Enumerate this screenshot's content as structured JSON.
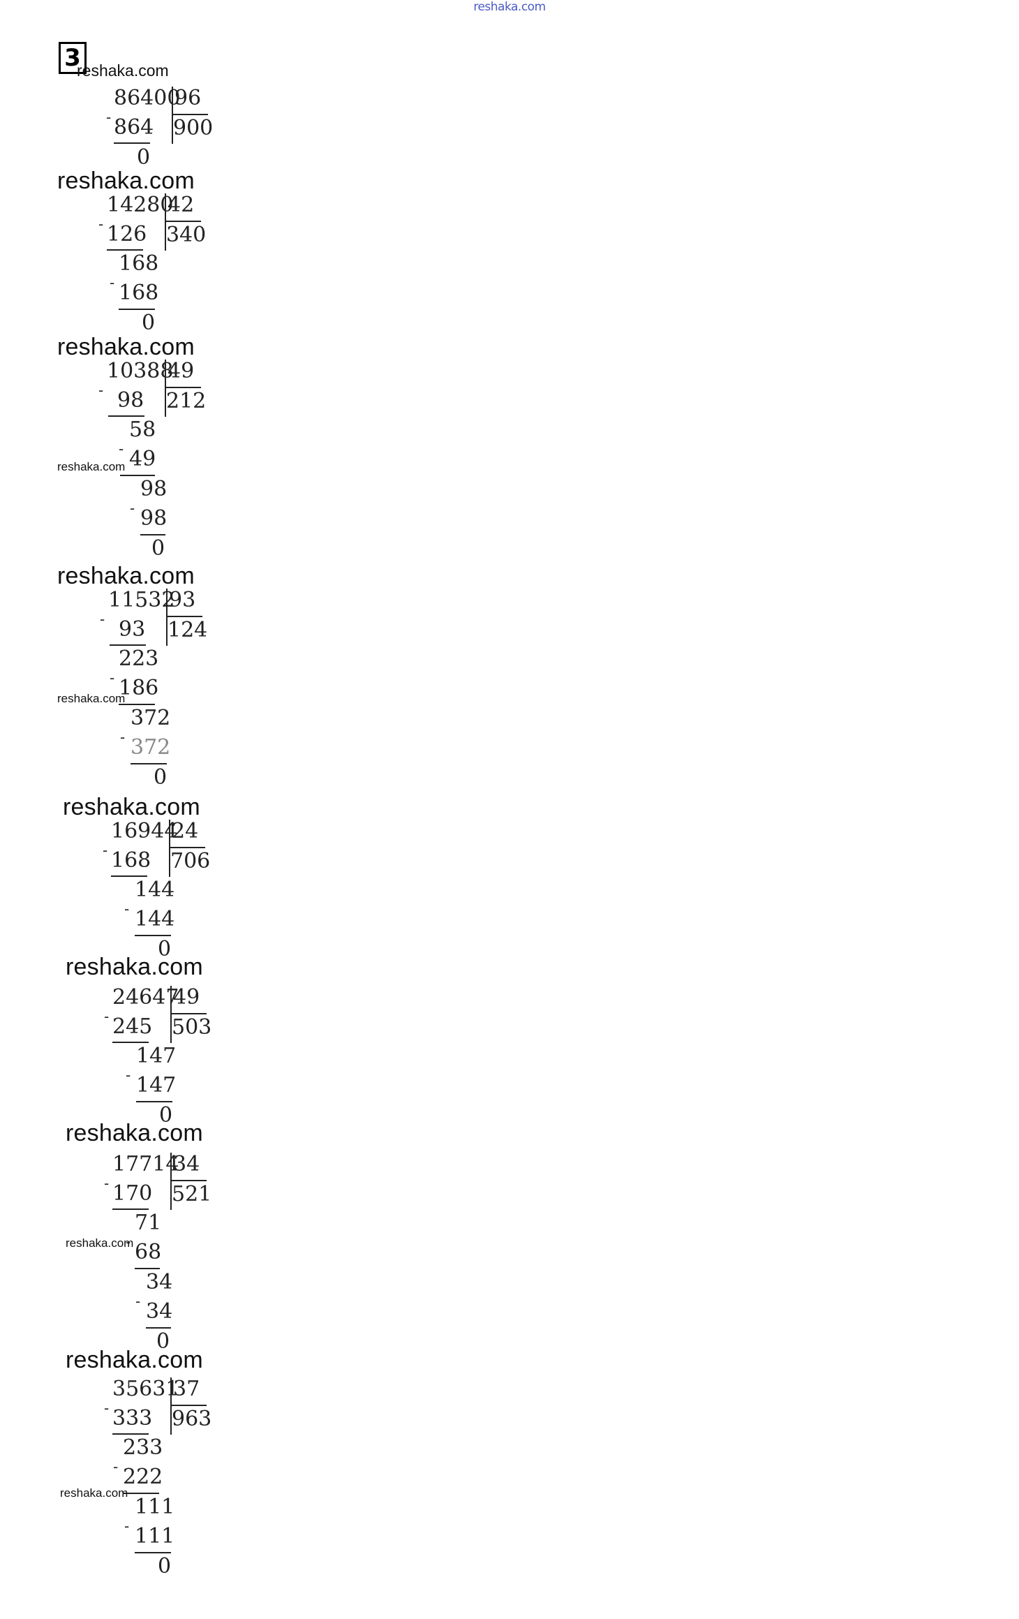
{
  "top_watermark": "reshaka.com",
  "task_number": "3",
  "watermarks": {
    "w1": "reshaka.com",
    "w2": "reshaka.com",
    "w3": "reshaka.com",
    "w3s": "reshaka.com",
    "w4": "reshaka.com",
    "w4s": "reshaka.com",
    "w5": "reshaka.com",
    "w6": "reshaka.com",
    "w7": "reshaka.com",
    "w7s": "reshaka.com",
    "w8": "reshaka.com",
    "w8s": "reshaka.com"
  },
  "divisions": [
    {
      "dividend": "86400",
      "divisor": "96",
      "quotient": "900",
      "steps": [
        "864",
        "0"
      ]
    },
    {
      "dividend": "14280",
      "divisor": "42",
      "quotient": "340",
      "steps": [
        "126",
        "168",
        "168",
        "0"
      ]
    },
    {
      "dividend": "10388",
      "divisor": "49",
      "quotient": "212",
      "steps": [
        "98",
        "58",
        "49",
        "98",
        "98",
        "0"
      ]
    },
    {
      "dividend": "11532",
      "divisor": "93",
      "quotient": "124",
      "steps": [
        "93",
        "223",
        "186",
        "372",
        "372",
        "0"
      ]
    },
    {
      "dividend": "16944",
      "divisor": "24",
      "quotient": "706",
      "steps": [
        "168",
        "144",
        "144",
        "0"
      ]
    },
    {
      "dividend": "24647",
      "divisor": "49",
      "quotient": "503",
      "steps": [
        "245",
        "147",
        "147",
        "0"
      ]
    },
    {
      "dividend": "17714",
      "divisor": "34",
      "quotient": "521",
      "steps": [
        "170",
        "71",
        "68",
        "34",
        "34",
        "0"
      ]
    },
    {
      "dividend": "35631",
      "divisor": "37",
      "quotient": "963",
      "steps": [
        "333",
        "233",
        "222",
        "111",
        "111",
        "0"
      ]
    }
  ]
}
